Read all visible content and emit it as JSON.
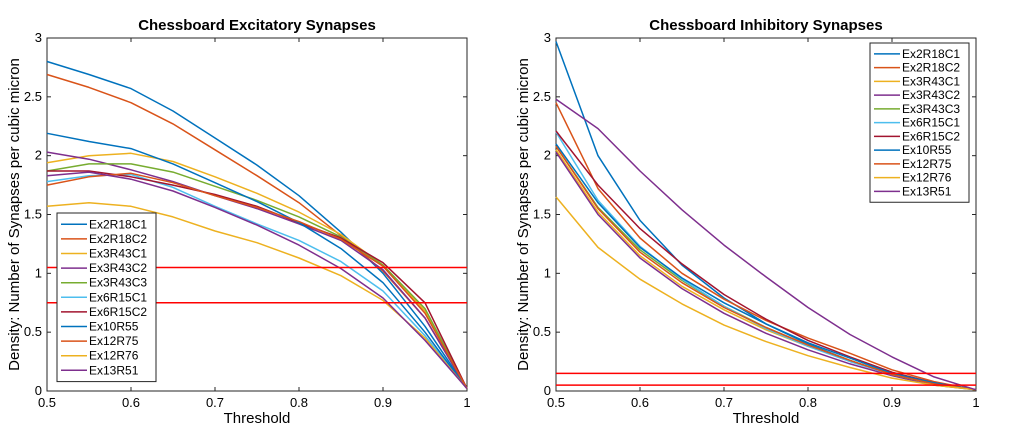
{
  "chart_data": [
    {
      "type": "line",
      "title": "Chessboard Excitatory Synapses",
      "xlabel": "Threshold",
      "ylabel": "Density: Number of Synapses per cubic micron",
      "xlim": [
        0.5,
        1
      ],
      "ylim": [
        0,
        3
      ],
      "xticks": [
        "0.5",
        "0.6",
        "0.7",
        "0.8",
        "0.9",
        "1"
      ],
      "yticks": [
        "0",
        "0.5",
        "1",
        "1.5",
        "2",
        "2.5",
        "3"
      ],
      "legend_position": "lower-left",
      "x": [
        0.5,
        0.55,
        0.6,
        0.65,
        0.7,
        0.75,
        0.8,
        0.85,
        0.9,
        0.95,
        1.0
      ],
      "series": [
        {
          "name": "Ex2R18C1",
          "color": "#0072BD",
          "values": [
            2.8,
            2.69,
            2.57,
            2.38,
            2.15,
            1.92,
            1.66,
            1.35,
            1.0,
            0.55,
            0.02
          ]
        },
        {
          "name": "Ex2R18C2",
          "color": "#D95319",
          "values": [
            2.69,
            2.58,
            2.45,
            2.27,
            2.05,
            1.83,
            1.6,
            1.32,
            1.02,
            0.62,
            0.02
          ]
        },
        {
          "name": "Ex3R43C1",
          "color": "#EDB120",
          "values": [
            1.94,
            2.0,
            2.02,
            1.95,
            1.82,
            1.68,
            1.52,
            1.33,
            1.07,
            0.68,
            0.02
          ]
        },
        {
          "name": "Ex3R43C2",
          "color": "#7E2F8E",
          "values": [
            2.03,
            1.97,
            1.88,
            1.78,
            1.66,
            1.55,
            1.42,
            1.28,
            1.03,
            0.62,
            0.02
          ]
        },
        {
          "name": "Ex3R43C3",
          "color": "#77AC30",
          "values": [
            1.87,
            1.93,
            1.93,
            1.86,
            1.74,
            1.62,
            1.48,
            1.31,
            1.07,
            0.7,
            0.02
          ]
        },
        {
          "name": "Ex6R15C1",
          "color": "#4DBEEE",
          "values": [
            1.78,
            1.83,
            1.84,
            1.73,
            1.57,
            1.42,
            1.28,
            1.1,
            0.85,
            0.47,
            0.02
          ]
        },
        {
          "name": "Ex6R15C2",
          "color": "#A2142F",
          "values": [
            1.87,
            1.87,
            1.82,
            1.75,
            1.67,
            1.57,
            1.43,
            1.3,
            1.09,
            0.75,
            0.02
          ]
        },
        {
          "name": "Ex10R55",
          "color": "#0072BD",
          "values": [
            2.19,
            2.12,
            2.06,
            1.93,
            1.77,
            1.61,
            1.43,
            1.21,
            0.92,
            0.5,
            0.02
          ]
        },
        {
          "name": "Ex12R75",
          "color": "#D95319",
          "values": [
            1.75,
            1.82,
            1.85,
            1.77,
            1.66,
            1.56,
            1.44,
            1.29,
            1.06,
            0.66,
            0.02
          ]
        },
        {
          "name": "Ex12R76",
          "color": "#EDB120",
          "values": [
            1.57,
            1.6,
            1.57,
            1.48,
            1.36,
            1.26,
            1.13,
            0.98,
            0.77,
            0.45,
            0.02
          ]
        },
        {
          "name": "Ex13R51",
          "color": "#7E2F8E",
          "values": [
            1.83,
            1.86,
            1.8,
            1.7,
            1.56,
            1.41,
            1.24,
            1.04,
            0.79,
            0.43,
            0.02
          ]
        }
      ],
      "reference_lines": [
        {
          "y": 1.05,
          "color": "#FF0000"
        },
        {
          "y": 0.75,
          "color": "#FF0000"
        }
      ]
    },
    {
      "type": "line",
      "title": "Chessboard Inhibitory Synapses",
      "xlabel": "Threshold",
      "ylabel": "Density: Number of Synapses per cubic micron",
      "xlim": [
        0.5,
        1
      ],
      "ylim": [
        0,
        3
      ],
      "xticks": [
        "0.5",
        "0.6",
        "0.7",
        "0.8",
        "0.9",
        "1"
      ],
      "yticks": [
        "0",
        "0.5",
        "1",
        "1.5",
        "2",
        "2.5",
        "3"
      ],
      "legend_position": "top-right",
      "x": [
        0.5,
        0.55,
        0.6,
        0.65,
        0.7,
        0.75,
        0.8,
        0.85,
        0.9,
        0.95,
        1.0
      ],
      "series": [
        {
          "name": "Ex2R18C1",
          "color": "#0072BD",
          "values": [
            2.97,
            2.0,
            1.45,
            1.07,
            0.79,
            0.57,
            0.4,
            0.26,
            0.14,
            0.06,
            0.01
          ]
        },
        {
          "name": "Ex2R18C2",
          "color": "#D95319",
          "values": [
            2.45,
            1.72,
            1.3,
            1.0,
            0.78,
            0.6,
            0.45,
            0.32,
            0.18,
            0.08,
            0.01
          ]
        },
        {
          "name": "Ex3R43C1",
          "color": "#EDB120",
          "values": [
            2.05,
            1.52,
            1.15,
            0.89,
            0.69,
            0.52,
            0.38,
            0.26,
            0.14,
            0.06,
            0.01
          ]
        },
        {
          "name": "Ex3R43C2",
          "color": "#7E2F8E",
          "values": [
            2.03,
            1.5,
            1.13,
            0.87,
            0.66,
            0.49,
            0.35,
            0.23,
            0.13,
            0.05,
            0.01
          ]
        },
        {
          "name": "Ex3R43C3",
          "color": "#77AC30",
          "values": [
            2.08,
            1.56,
            1.2,
            0.94,
            0.72,
            0.54,
            0.39,
            0.26,
            0.14,
            0.06,
            0.01
          ]
        },
        {
          "name": "Ex6R15C1",
          "color": "#4DBEEE",
          "values": [
            2.2,
            1.62,
            1.23,
            0.95,
            0.72,
            0.53,
            0.38,
            0.25,
            0.14,
            0.06,
            0.01
          ]
        },
        {
          "name": "Ex6R15C2",
          "color": "#A2142F",
          "values": [
            2.21,
            1.75,
            1.38,
            1.08,
            0.82,
            0.61,
            0.43,
            0.29,
            0.16,
            0.07,
            0.01
          ]
        },
        {
          "name": "Ex10R55",
          "color": "#0072BD",
          "values": [
            2.1,
            1.6,
            1.22,
            0.96,
            0.75,
            0.57,
            0.41,
            0.28,
            0.15,
            0.07,
            0.01
          ]
        },
        {
          "name": "Ex12R75",
          "color": "#D95319",
          "values": [
            2.08,
            1.55,
            1.18,
            0.92,
            0.71,
            0.54,
            0.39,
            0.26,
            0.14,
            0.06,
            0.01
          ]
        },
        {
          "name": "Ex12R76",
          "color": "#EDB120",
          "values": [
            1.65,
            1.22,
            0.95,
            0.74,
            0.56,
            0.42,
            0.3,
            0.2,
            0.11,
            0.05,
            0.01
          ]
        },
        {
          "name": "Ex13R51",
          "color": "#7E2F8E",
          "values": [
            2.48,
            2.23,
            1.87,
            1.54,
            1.24,
            0.97,
            0.71,
            0.48,
            0.29,
            0.12,
            0.01
          ]
        }
      ],
      "reference_lines": [
        {
          "y": 0.15,
          "color": "#FF0000"
        },
        {
          "y": 0.05,
          "color": "#FF0000"
        }
      ]
    }
  ]
}
